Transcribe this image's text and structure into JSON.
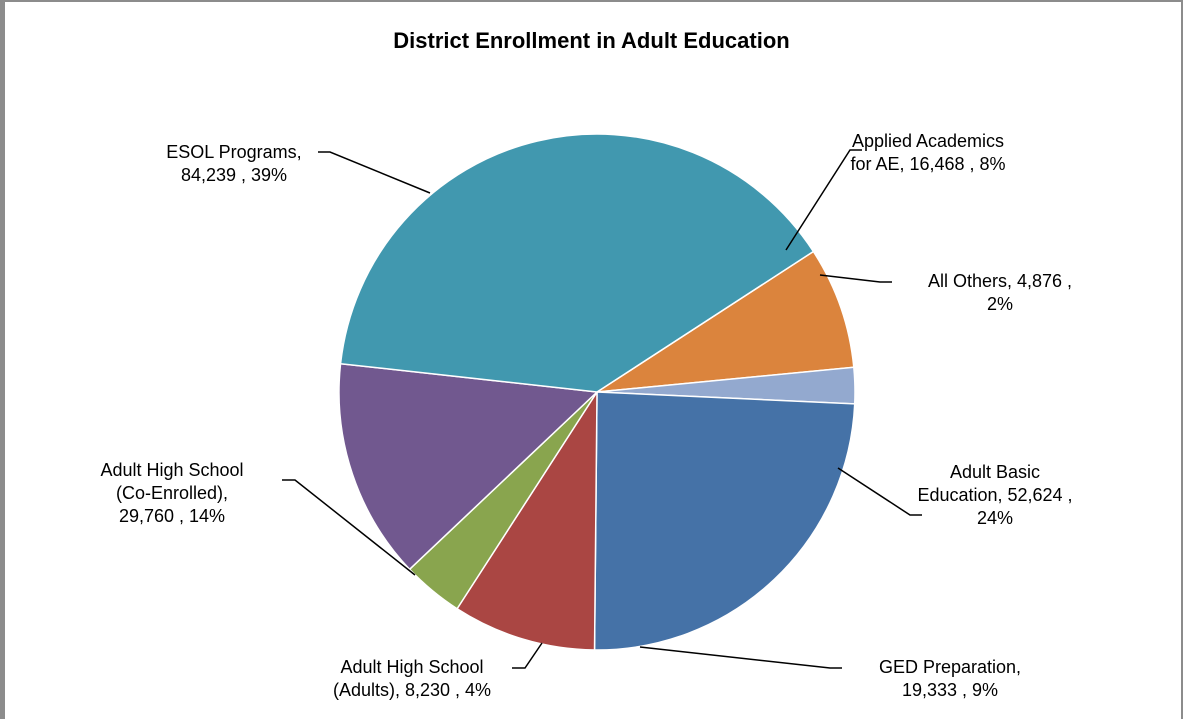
{
  "chart_data": {
    "type": "pie",
    "title": "District Enrollment in Adult Education",
    "slices": [
      {
        "label_lines": [
          "Applied Academics",
          "for AE,  16,468 , 8%"
        ],
        "name": "Applied Academics for AE",
        "value": 16468,
        "percent": 8,
        "color": "#DB843D"
      },
      {
        "label_lines": [
          "All Others,  4,876 ,",
          "2%"
        ],
        "name": "All Others",
        "value": 4876,
        "percent": 2,
        "color": "#93A9CF"
      },
      {
        "label_lines": [
          "Adult Basic",
          "Education,  52,624 ,",
          "24%"
        ],
        "name": "Adult Basic Education",
        "value": 52624,
        "percent": 24,
        "color": "#4572A7"
      },
      {
        "label_lines": [
          "GED Preparation,",
          "19,333 , 9%"
        ],
        "name": "GED Preparation",
        "value": 19333,
        "percent": 9,
        "color": "#AA4643"
      },
      {
        "label_lines": [
          "Adult High School",
          "(Adults),  8,230 , 4%"
        ],
        "name": "Adult High School (Adults)",
        "value": 8230,
        "percent": 4,
        "color": "#89A54E"
      },
      {
        "label_lines": [
          "Adult High School",
          "(Co-Enrolled),",
          "29,760 , 14%"
        ],
        "name": "Adult High School (Co-Enrolled)",
        "value": 29760,
        "percent": 14,
        "color": "#71588F"
      },
      {
        "label_lines": [
          "ESOL Programs,",
          "84,239 , 39%"
        ],
        "name": "ESOL Programs",
        "value": 84239,
        "percent": 39,
        "color": "#4198AF"
      }
    ],
    "start_angle_deg": 57,
    "direction": "clockwise",
    "legend": "none"
  }
}
